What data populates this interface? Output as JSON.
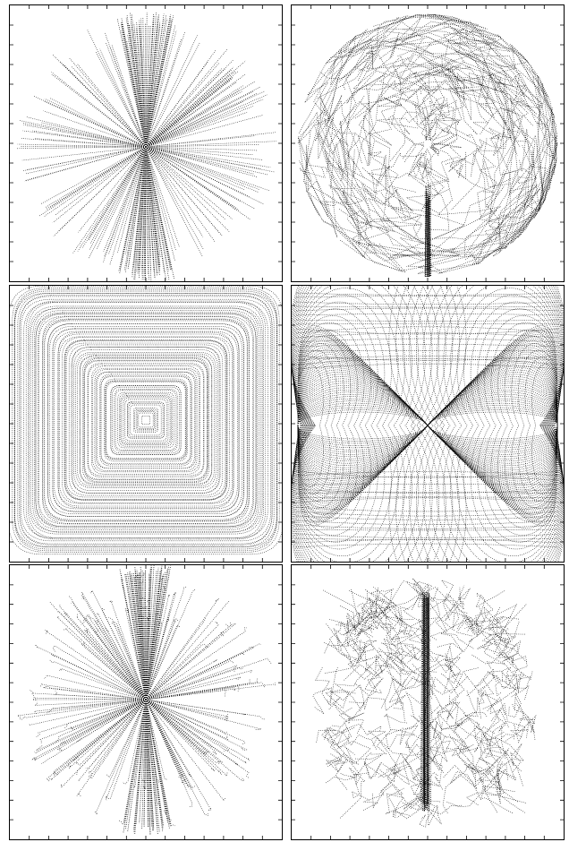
{
  "figure": {
    "line_color": "#000000",
    "line_style": "dotted",
    "background": "#ffffff"
  },
  "chart_data": [
    {
      "type": "line",
      "panel": "top-left",
      "pattern": "radial-spokes",
      "grid": false,
      "axis_ticks": "inward",
      "tick_labels": []
    },
    {
      "type": "line",
      "panel": "top-right",
      "pattern": "tangled-circular",
      "grid": false,
      "axis_ticks": "inward",
      "tick_labels": []
    },
    {
      "type": "line",
      "panel": "middle-left",
      "pattern": "concentric-squares",
      "grid": false,
      "axis_ticks": "inward",
      "tick_labels": []
    },
    {
      "type": "line",
      "panel": "middle-right",
      "pattern": "bowtie-orbits",
      "grid": false,
      "axis_ticks": "inward",
      "tick_labels": []
    },
    {
      "type": "line",
      "panel": "bottom-left",
      "pattern": "radial-spokes-jagged",
      "grid": false,
      "axis_ticks": "inward",
      "tick_labels": []
    },
    {
      "type": "line",
      "panel": "bottom-right",
      "pattern": "dense-cloud",
      "grid": false,
      "axis_ticks": "inward",
      "tick_labels": []
    }
  ]
}
